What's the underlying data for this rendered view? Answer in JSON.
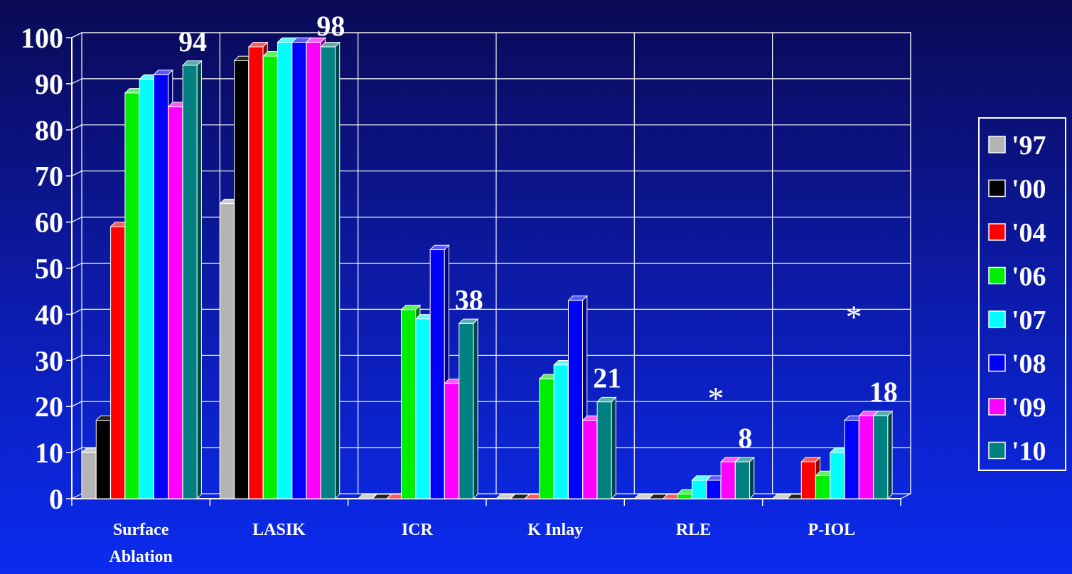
{
  "chart_data": {
    "type": "bar",
    "title": "",
    "xlabel": "",
    "ylabel": "",
    "ylim": [
      0,
      100
    ],
    "yticks": [
      0,
      10,
      20,
      30,
      40,
      50,
      60,
      70,
      80,
      90,
      100
    ],
    "grid": true,
    "legend_position": "right",
    "categories": [
      "Surface\nAblation",
      "LASIK",
      "ICR",
      "K Inlay",
      "RLE",
      "P-IOL"
    ],
    "series": [
      {
        "name": "'97",
        "color": "#b4b4b4",
        "values": [
          10,
          64,
          0,
          0,
          0,
          0
        ]
      },
      {
        "name": "'00",
        "color": "#000000",
        "values": [
          17,
          95,
          0,
          0,
          0,
          0
        ]
      },
      {
        "name": "'04",
        "color": "#ff0000",
        "values": [
          59,
          98,
          0,
          0,
          0,
          8
        ]
      },
      {
        "name": "'06",
        "color": "#00ee00",
        "values": [
          88,
          96,
          41,
          26,
          1,
          5
        ]
      },
      {
        "name": "'07",
        "color": "#00ffff",
        "values": [
          91,
          99,
          39,
          29,
          4,
          10
        ]
      },
      {
        "name": "'08",
        "color": "#0000ff",
        "values": [
          92,
          99,
          54,
          43,
          4,
          17
        ]
      },
      {
        "name": "'09",
        "color": "#ff00ff",
        "values": [
          85,
          99,
          25,
          17,
          8,
          18
        ]
      },
      {
        "name": "'10",
        "color": "#008080",
        "values": [
          94,
          98,
          38,
          21,
          8,
          18
        ]
      }
    ],
    "data_labels": [
      {
        "category": 0,
        "text": "94"
      },
      {
        "category": 1,
        "text": "98"
      },
      {
        "category": 2,
        "text": "38"
      },
      {
        "category": 3,
        "text": "21"
      },
      {
        "category": 4,
        "text": "8"
      },
      {
        "category": 5,
        "text": "18"
      }
    ],
    "annotations": [
      {
        "category": 4,
        "text": "*"
      },
      {
        "category": 5,
        "text": "*"
      }
    ]
  }
}
